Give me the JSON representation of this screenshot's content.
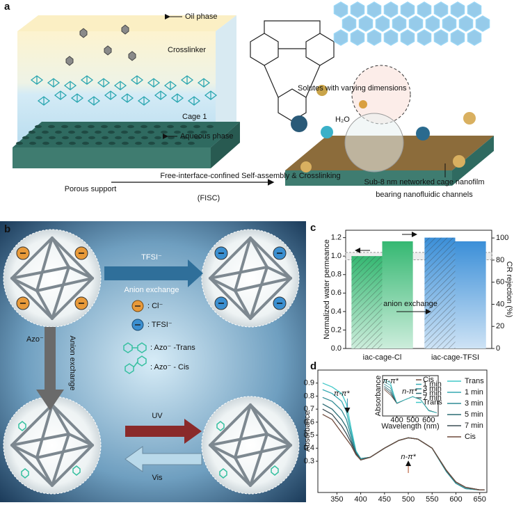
{
  "panel_a": {
    "label": "a",
    "oil_phase": "Oil phase",
    "crosslinker": "Crosslinker",
    "aqueous_phase": "Aqueous phase",
    "porous_support": "Porous support",
    "cage": "Cage 1",
    "solutes": "Solutes with varying dimensions",
    "water": "H₂O",
    "process": "Free-interface-confined Self-assembly & Crosslinking",
    "process_abbr": "(FISC)",
    "result": [
      "Sub-8 nm networked cage nanofilm",
      "bearing nanofluidic channels"
    ]
  },
  "panel_b": {
    "label": "b",
    "top_arrow": [
      "TFSI⁻",
      "Anion exchange"
    ],
    "left_arrow": [
      "Azo⁻",
      "Anion exchange"
    ],
    "uv": "UV",
    "vis": "Vis",
    "legend": [
      ": Cl⁻",
      ": TFSI⁻",
      ": Azo⁻ -Trans",
      ": Azo⁻ - Cis"
    ]
  },
  "chart_data": [
    {
      "type": "bar",
      "label": "c",
      "categories": [
        "iac-cage-Cl",
        "iac-cage-TFSI"
      ],
      "category_colors": [
        "#35b872",
        "#3b8fd8"
      ],
      "ylabel": "Normalized water permeance",
      "y2label": "CR rejection (%)",
      "ylim": [
        0,
        1.28
      ],
      "yticks": [
        {
          "value": 0,
          "label": "0.0"
        },
        0.2,
        0.4,
        0.6,
        0.8,
        {
          "value": 1,
          "label": "1.0"
        },
        1.2
      ],
      "y2lim": [
        0,
        107
      ],
      "y2ticks": [
        0,
        20,
        40,
        60,
        80,
        100
      ],
      "series": [
        {
          "values": [
            1.0,
            1.2
          ],
          "hatch": true
        },
        {
          "values": [
            97,
            97
          ],
          "axis": "y2",
          "hatch": false
        }
      ],
      "band": [
        0.96,
        1.04
      ],
      "annotation": "anion exchange"
    },
    {
      "type": "line",
      "label": "d",
      "ylabel": "Absorbance",
      "x": [
        320,
        340,
        360,
        370,
        380,
        390,
        400,
        420,
        450,
        480,
        500,
        520,
        550,
        580,
        600,
        620,
        650,
        660
      ],
      "xlim": [
        310,
        665
      ],
      "xticks": [
        350,
        400,
        450,
        500,
        550,
        600,
        650
      ],
      "ylim": [
        0.06,
        1.0
      ],
      "yticks": [
        0.3,
        0.4,
        0.5,
        0.6,
        0.7,
        0.8,
        0.9
      ],
      "series": [
        {
          "name": "Trans",
          "color": "#40c8c8",
          "values": [
            0.9,
            0.87,
            0.82,
            0.74,
            0.55,
            0.38,
            0.32,
            0.33,
            0.4,
            0.46,
            0.48,
            0.47,
            0.4,
            0.22,
            0.13,
            0.09,
            0.08,
            0.08
          ]
        },
        {
          "name": "1 min",
          "color": "#35a9b2",
          "values": [
            0.85,
            0.82,
            0.76,
            0.68,
            0.52,
            0.37,
            0.32,
            0.33,
            0.4,
            0.46,
            0.48,
            0.47,
            0.4,
            0.22,
            0.13,
            0.09,
            0.08,
            0.08
          ]
        },
        {
          "name": "3 min",
          "color": "#2f8c95",
          "values": [
            0.79,
            0.76,
            0.69,
            0.62,
            0.49,
            0.37,
            0.32,
            0.33,
            0.4,
            0.46,
            0.48,
            0.47,
            0.4,
            0.22,
            0.13,
            0.09,
            0.08,
            0.08
          ]
        },
        {
          "name": "5 min",
          "color": "#2a6b74",
          "values": [
            0.74,
            0.7,
            0.62,
            0.56,
            0.46,
            0.36,
            0.31,
            0.33,
            0.4,
            0.46,
            0.48,
            0.47,
            0.4,
            0.23,
            0.14,
            0.1,
            0.08,
            0.08
          ]
        },
        {
          "name": "7 min",
          "color": "#3b4d54",
          "values": [
            0.7,
            0.66,
            0.57,
            0.51,
            0.44,
            0.36,
            0.31,
            0.33,
            0.4,
            0.46,
            0.48,
            0.47,
            0.4,
            0.23,
            0.14,
            0.1,
            0.08,
            0.08
          ]
        },
        {
          "name": "Cis",
          "color": "#6e4a3c",
          "values": [
            0.66,
            0.62,
            0.52,
            0.47,
            0.42,
            0.35,
            0.31,
            0.33,
            0.4,
            0.46,
            0.48,
            0.47,
            0.4,
            0.23,
            0.14,
            0.1,
            0.08,
            0.08
          ]
        }
      ],
      "annotations": [
        "π-π*",
        "n-π*"
      ]
    },
    {
      "type": "line",
      "ylabel": "Absorbance",
      "xlabel": "Wavelength (nm)",
      "x": [
        320,
        360,
        380,
        400,
        450,
        500,
        550,
        600,
        650
      ],
      "xlim": [
        310,
        660
      ],
      "xticks": [
        400,
        500,
        600
      ],
      "ylim": [
        0,
        1.0
      ],
      "series": [
        {
          "name": "Cis",
          "color": "#6e4a3c",
          "values": [
            0.66,
            0.52,
            0.42,
            0.31,
            0.4,
            0.48,
            0.4,
            0.14,
            0.08
          ]
        },
        {
          "name": "1 min",
          "color": "#35a9b2",
          "values": [
            0.85,
            0.76,
            0.52,
            0.32,
            0.4,
            0.48,
            0.4,
            0.13,
            0.08
          ]
        },
        {
          "name": "3 min",
          "color": "#2f8c95",
          "values": [
            0.79,
            0.69,
            0.49,
            0.32,
            0.4,
            0.48,
            0.4,
            0.13,
            0.08
          ]
        },
        {
          "name": "5 min",
          "color": "#2a6b74",
          "values": [
            0.74,
            0.62,
            0.46,
            0.31,
            0.4,
            0.48,
            0.4,
            0.14,
            0.08
          ]
        },
        {
          "name": "7 min",
          "color": "#3b4d54",
          "values": [
            0.7,
            0.57,
            0.44,
            0.31,
            0.4,
            0.48,
            0.4,
            0.14,
            0.08
          ]
        },
        {
          "name": "Trans",
          "color": "#40c8c8",
          "values": [
            0.9,
            0.82,
            0.55,
            0.32,
            0.4,
            0.48,
            0.4,
            0.13,
            0.08
          ]
        }
      ],
      "annotations": [
        "π-π*",
        "n-π*"
      ]
    }
  ]
}
